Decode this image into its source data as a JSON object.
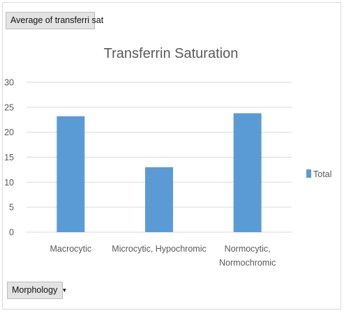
{
  "pivot": {
    "value_field_label": "Average of transferri sat",
    "axis_field_label": "Morphology",
    "axis_field_arrow": "▼"
  },
  "colors": {
    "bar": "#5b9bd5",
    "grid": "#d9d9d9",
    "text": "#595959"
  },
  "chart_data": {
    "type": "bar",
    "title": "Transferrin Saturation",
    "categories": [
      "Macrocytic",
      "Microcytic, Hypochromic",
      "Normocytic, Normochromic"
    ],
    "category_lines": [
      [
        "Macrocytic"
      ],
      [
        "Microcytic, Hypochromic"
      ],
      [
        "Normocytic,",
        "Normochromic"
      ]
    ],
    "series": [
      {
        "name": "Total",
        "values": [
          23.2,
          13.0,
          23.8
        ]
      }
    ],
    "ylim": [
      0,
      30
    ],
    "yticks": [
      0,
      5,
      10,
      15,
      20,
      25,
      30
    ],
    "grid": true,
    "legend": "right"
  }
}
